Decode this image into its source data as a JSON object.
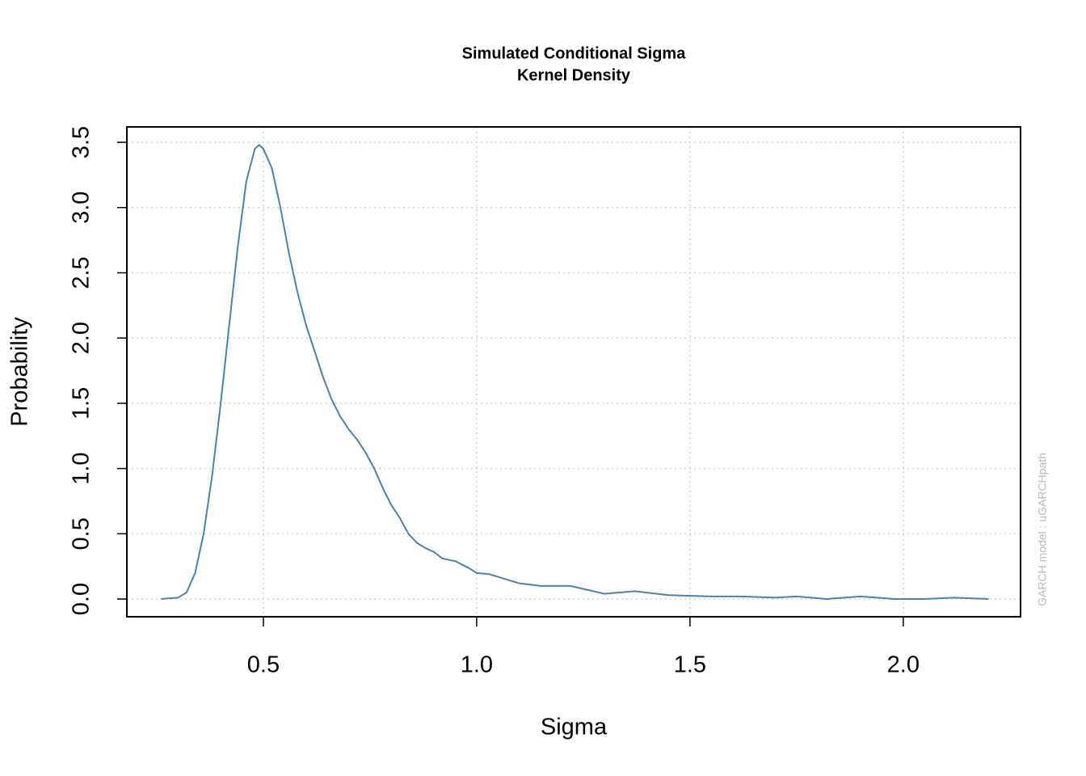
{
  "chart_data": {
    "type": "line",
    "title": [
      "Simulated Conditional Sigma",
      "Kernel Density"
    ],
    "x_label": "Sigma",
    "y_label": "Probability",
    "annotation": "GARCH model : uGARCHpath",
    "grid": true,
    "xlim": [
      0.18,
      2.275
    ],
    "ylim": [
      -0.136,
      3.618
    ],
    "xticks": [
      {
        "value": 0.5,
        "label": "0.5"
      },
      {
        "value": 1.0,
        "label": "1.0"
      },
      1.5,
      {
        "value": 2.0,
        "label": "2.0"
      }
    ],
    "yticks": [
      {
        "value": 0,
        "label": "0.0"
      },
      0.5,
      {
        "value": 1,
        "label": "1.0"
      },
      1.5,
      {
        "value": 2,
        "label": "2.0"
      },
      2.5,
      {
        "value": 3,
        "label": "3.0"
      },
      3.5
    ],
    "series": [
      {
        "color": "#4682b4",
        "x": [
          0.26,
          0.3,
          0.32,
          0.34,
          0.36,
          0.38,
          0.4,
          0.42,
          0.44,
          0.46,
          0.48,
          0.49,
          0.5,
          0.52,
          0.54,
          0.56,
          0.58,
          0.6,
          0.62,
          0.64,
          0.66,
          0.68,
          0.7,
          0.72,
          0.74,
          0.76,
          0.78,
          0.8,
          0.82,
          0.84,
          0.86,
          0.88,
          0.9,
          0.92,
          0.95,
          0.98,
          1.0,
          1.03,
          1.06,
          1.1,
          1.15,
          1.22,
          1.3,
          1.37,
          1.45,
          1.55,
          1.62,
          1.7,
          1.75,
          1.82,
          1.9,
          1.98,
          2.05,
          2.12,
          2.2
        ],
        "values": [
          0,
          0.01,
          0.05,
          0.2,
          0.5,
          0.95,
          1.5,
          2.1,
          2.7,
          3.2,
          3.45,
          3.48,
          3.45,
          3.3,
          3.0,
          2.65,
          2.35,
          2.1,
          1.9,
          1.7,
          1.53,
          1.4,
          1.3,
          1.22,
          1.12,
          1.0,
          0.85,
          0.72,
          0.62,
          0.5,
          0.43,
          0.39,
          0.36,
          0.31,
          0.29,
          0.24,
          0.2,
          0.19,
          0.16,
          0.12,
          0.1,
          0.1,
          0.04,
          0.06,
          0.03,
          0.02,
          0.02,
          0.01,
          0.02,
          0.0,
          0.02,
          0.0,
          0.0,
          0.01,
          0.0
        ]
      }
    ]
  }
}
